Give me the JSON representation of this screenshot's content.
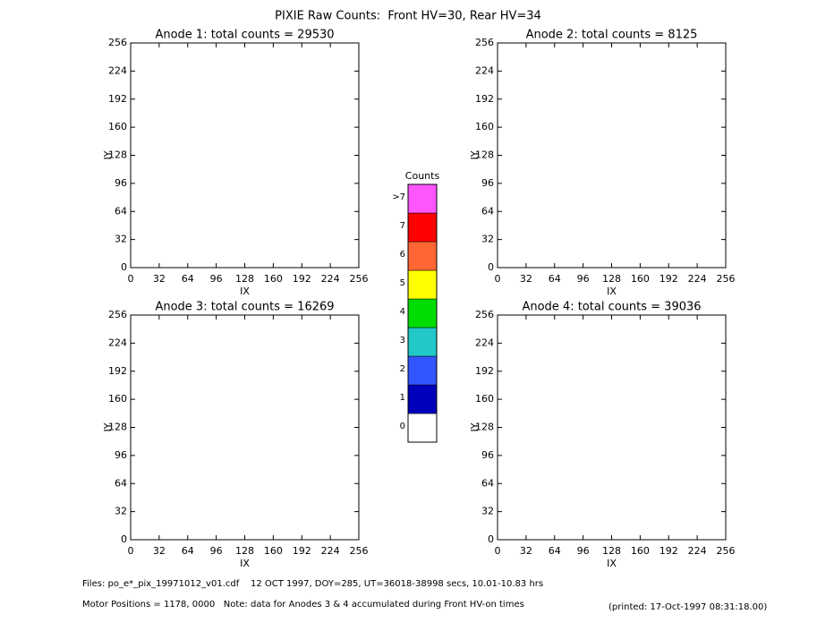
{
  "title": "PIXIE Raw Counts:  Front HV=30, Rear HV=34",
  "chart_data": [
    {
      "type": "heatmap",
      "title": "Anode 1: total counts = 29530",
      "xlabel": "IX",
      "ylabel": "IY",
      "xlim": [
        0,
        256
      ],
      "ylim": [
        0,
        256
      ],
      "xticks": [
        0,
        32,
        64,
        96,
        128,
        160,
        192,
        224,
        256
      ],
      "yticks": [
        0,
        32,
        64,
        96,
        128,
        160,
        192,
        224,
        256
      ]
    },
    {
      "type": "heatmap",
      "title": "Anode 2: total counts = 8125",
      "xlabel": "IX",
      "ylabel": "IY",
      "xlim": [
        0,
        256
      ],
      "ylim": [
        0,
        256
      ],
      "xticks": [
        0,
        32,
        64,
        96,
        128,
        160,
        192,
        224,
        256
      ],
      "yticks": [
        0,
        32,
        64,
        96,
        128,
        160,
        192,
        224,
        256
      ]
    },
    {
      "type": "heatmap",
      "title": "Anode 3: total counts = 16269",
      "xlabel": "IX",
      "ylabel": "IY",
      "xlim": [
        0,
        256
      ],
      "ylim": [
        0,
        256
      ],
      "xticks": [
        0,
        32,
        64,
        96,
        128,
        160,
        192,
        224,
        256
      ],
      "yticks": [
        0,
        32,
        64,
        96,
        128,
        160,
        192,
        224,
        256
      ]
    },
    {
      "type": "heatmap",
      "title": "Anode 4: total counts = 39036",
      "xlabel": "IX",
      "ylabel": "IY",
      "xlim": [
        0,
        256
      ],
      "ylim": [
        0,
        256
      ],
      "xticks": [
        0,
        32,
        64,
        96,
        128,
        160,
        192,
        224,
        256
      ],
      "yticks": [
        0,
        32,
        64,
        96,
        128,
        160,
        192,
        224,
        256
      ]
    }
  ],
  "colorbar": {
    "title": "Counts",
    "levels": [
      {
        "label": "0",
        "color": "#ffffff"
      },
      {
        "label": "1",
        "color": "#0000bb"
      },
      {
        "label": "2",
        "color": "#3355ff"
      },
      {
        "label": "3",
        "color": "#22c8c8"
      },
      {
        "label": "4",
        "color": "#00dd00"
      },
      {
        "label": "5",
        "color": "#ffff00"
      },
      {
        "label": "6",
        "color": "#ff6633"
      },
      {
        "label": "7",
        "color": "#ff0000"
      },
      {
        "label": ">7",
        "color": "#ff55ff"
      }
    ]
  },
  "footer": {
    "files": "Files: po_e*_pix_19971012_v01.cdf    12 OCT 1997, DOY=285, UT=36018-38998 secs, 10.01-10.83 hrs",
    "motor": "Motor Positions = 1178, 0000   Note: data for Anodes 3 & 4 accumulated during Front HV-on times",
    "printed": "(printed: 17-Oct-1997 08:31:18.00)"
  }
}
